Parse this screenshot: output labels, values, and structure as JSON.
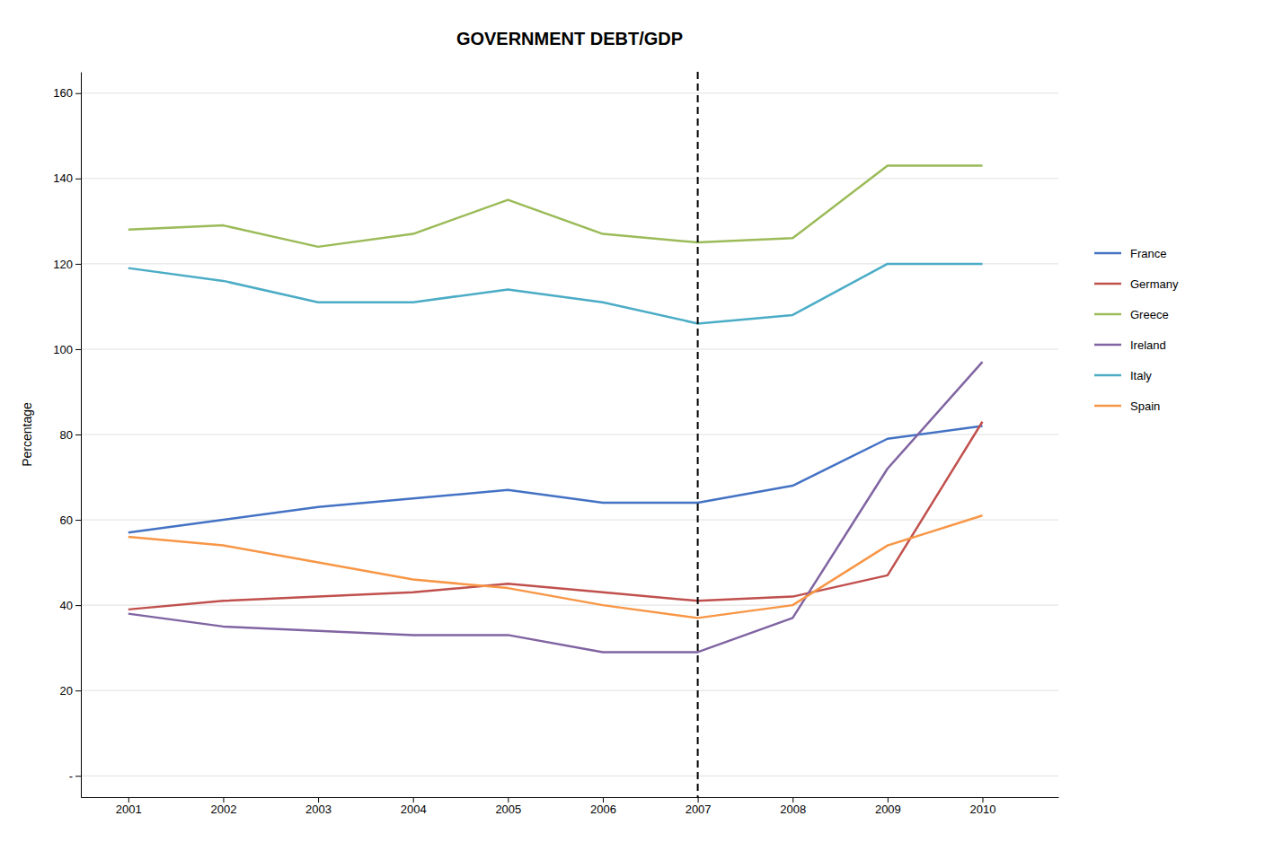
{
  "chart_data": {
    "type": "line",
    "title": "GOVERNMENT DEBT/GDP",
    "y_label": "Percentage",
    "x": [
      2001,
      2002,
      2003,
      2004,
      2005,
      2006,
      2007,
      2008,
      2009,
      2010
    ],
    "series": [
      {
        "name": "France",
        "color": "#4472C4",
        "values": [
          57,
          60,
          63,
          65,
          67,
          64,
          64,
          68,
          79,
          82
        ]
      },
      {
        "name": "Germany",
        "color": "#C0504D",
        "values": [
          39,
          41,
          42,
          43,
          45,
          43,
          41,
          42,
          47,
          83
        ]
      },
      {
        "name": "Greece",
        "color": "#9BBB59",
        "values": [
          128,
          129,
          124,
          127,
          135,
          127,
          125,
          126,
          143,
          143
        ]
      },
      {
        "name": "Ireland",
        "color": "#8064A2",
        "values": [
          38,
          35,
          34,
          33,
          33,
          29,
          29,
          37,
          72,
          97
        ]
      },
      {
        "name": "Italy",
        "color": "#4BACC6",
        "values": [
          119,
          116,
          111,
          111,
          114,
          111,
          106,
          108,
          120,
          120
        ]
      },
      {
        "name": "Spain",
        "color": "#F79646",
        "values": [
          56,
          54,
          50,
          46,
          44,
          40,
          37,
          40,
          54,
          61
        ]
      }
    ],
    "vline_x": 2007,
    "xlim": [
      2000.5,
      2010.8
    ],
    "xticks": [
      2001,
      2002,
      2003,
      2004,
      2005,
      2006,
      2007,
      2008,
      2009,
      2010
    ],
    "ylim": [
      -5,
      165
    ],
    "yticks": [
      {
        "value": 0,
        "label": "-"
      },
      20,
      40,
      60,
      80,
      100,
      120,
      140,
      160
    ],
    "grid": "y",
    "legend": "right"
  }
}
